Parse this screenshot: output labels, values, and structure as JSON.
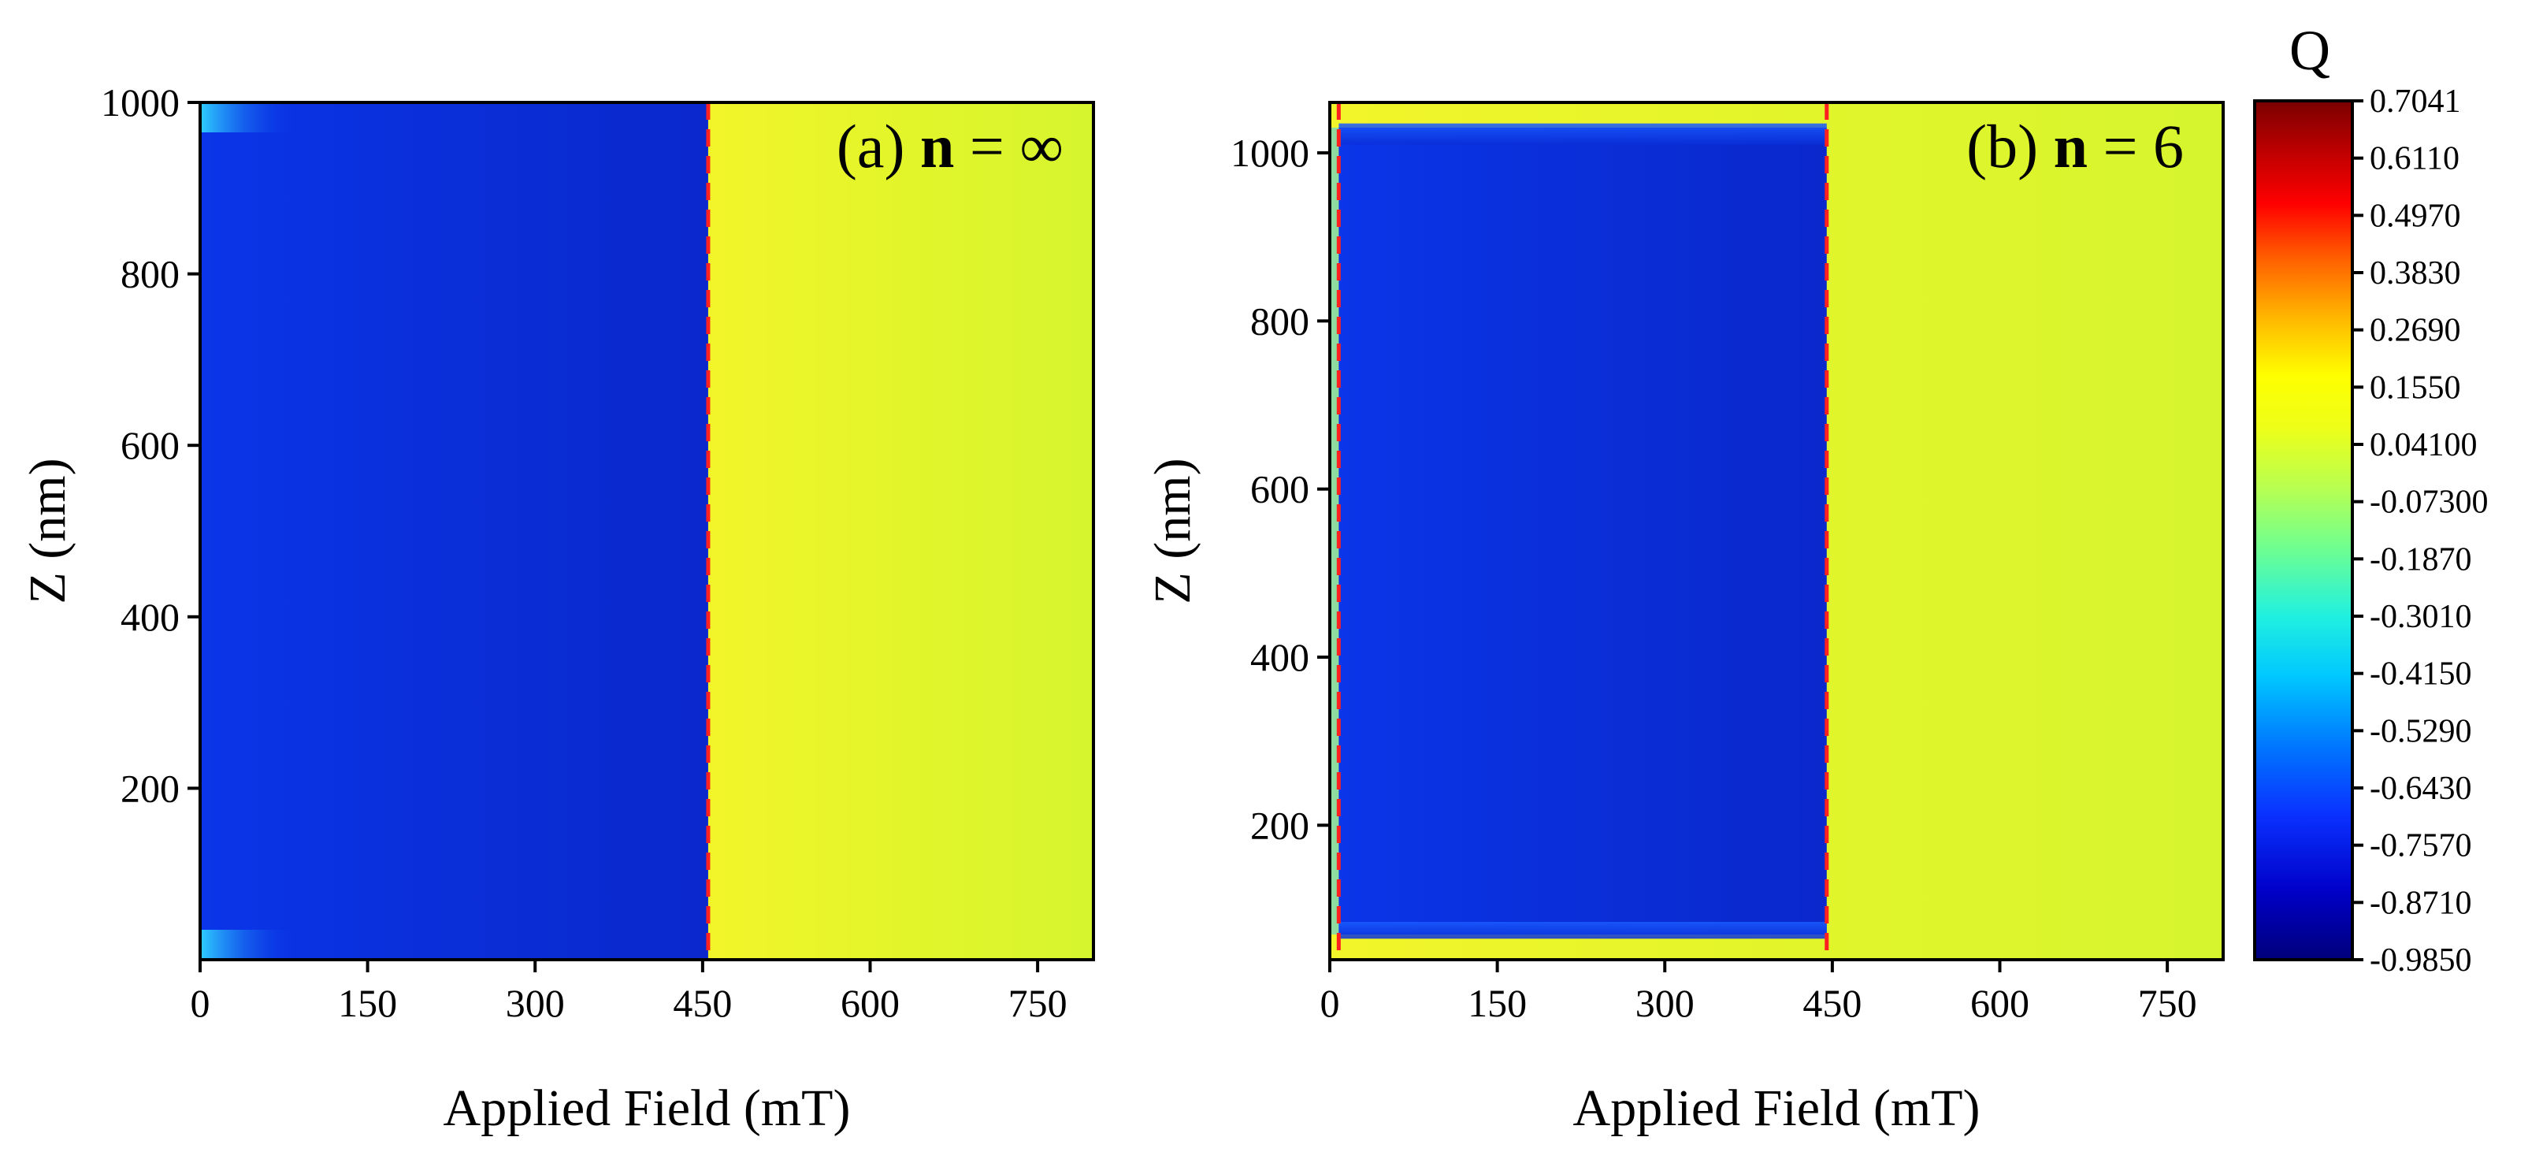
{
  "chart_data": [
    {
      "type": "heatmap",
      "panel_label": "(a) ",
      "n_symbol": "n",
      "n_value": " = ∞",
      "xlabel": "Applied Field (mT)",
      "ylabel": "Z (nm)",
      "xlim": [
        0,
        800
      ],
      "ylim": [
        0,
        1000
      ],
      "xticks": [
        0,
        150,
        300,
        450,
        600,
        750
      ],
      "yticks": [
        200,
        400,
        600,
        800,
        1000
      ],
      "transition_field_mT": 455,
      "low_field_region": {
        "x_range": [
          0,
          455
        ],
        "Q": -0.87,
        "color": "#0a2fe0"
      },
      "high_field_region": {
        "x_range": [
          455,
          800
        ],
        "Q": 0.06,
        "color": "#dcf52c"
      },
      "edge_features": [
        {
          "x_range": [
            0,
            60
          ],
          "z_range": [
            0,
            35
          ],
          "Q": -0.45
        },
        {
          "x_range": [
            0,
            60
          ],
          "z_range": [
            965,
            1000
          ],
          "Q": -0.45
        }
      ]
    },
    {
      "type": "heatmap",
      "panel_label": "(b) ",
      "n_symbol": "n",
      "n_value": " = 6",
      "xlabel": "Applied Field (mT)",
      "ylabel": "Z (nm)",
      "xlim": [
        0,
        800
      ],
      "ylim": [
        40,
        1060
      ],
      "xticks": [
        0,
        150,
        300,
        450,
        600,
        750
      ],
      "yticks": [
        200,
        400,
        600,
        800,
        1000
      ],
      "transition_field_mT": 445,
      "left_boundary_field_mT": 8,
      "low_field_region": {
        "x_range": [
          8,
          445
        ],
        "z_range": [
          70,
          1030
        ],
        "Q": -0.87,
        "color": "#0a2fe0"
      },
      "high_field_region": {
        "x_range": [
          445,
          800
        ],
        "Q": 0.06,
        "color": "#dcf52c"
      },
      "edge_features": [
        {
          "x_range": [
            8,
            445
          ],
          "z_range": [
            65,
            85
          ],
          "Q": -0.55
        },
        {
          "x_range": [
            8,
            445
          ],
          "z_range": [
            1010,
            1035
          ],
          "Q": -0.55
        }
      ]
    }
  ],
  "colorbar": {
    "title": "Q",
    "ticks": [
      "0.7041",
      "0.6110",
      "0.4970",
      "0.3830",
      "0.2690",
      "0.1550",
      "0.04100",
      "-0.07300",
      "-0.1870",
      "-0.3010",
      "-0.4150",
      "-0.5290",
      "-0.6430",
      "-0.7570",
      "-0.8710",
      "-0.9850"
    ],
    "range": [
      -0.985,
      0.7041
    ],
    "colors": [
      "#00007a",
      "#0000c8",
      "#0a32ff",
      "#0096ff",
      "#00e6ff",
      "#40ffc0",
      "#a0ff60",
      "#e6ff20",
      "#ffff00",
      "#ffb400",
      "#ff5a00",
      "#ff0000",
      "#b40000",
      "#7a0000"
    ]
  }
}
